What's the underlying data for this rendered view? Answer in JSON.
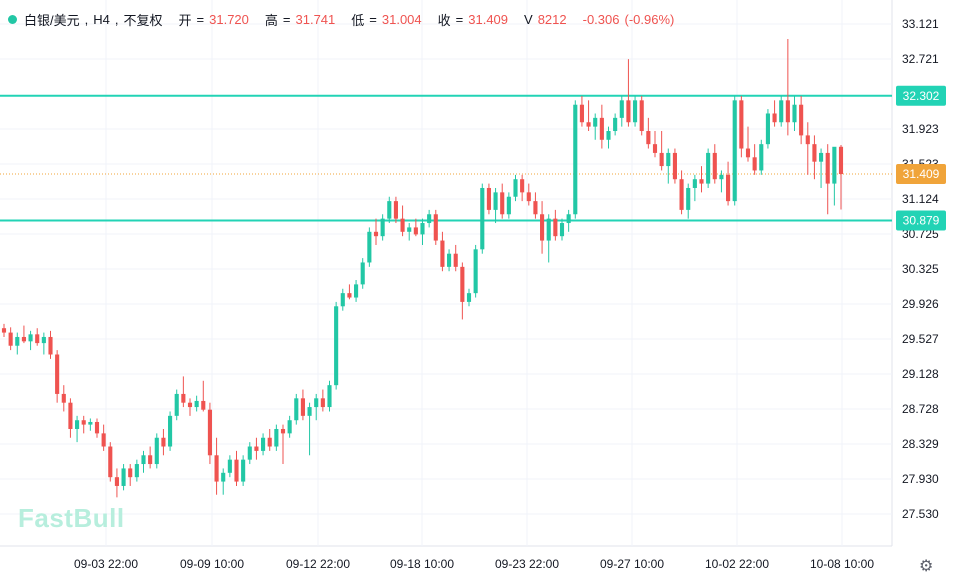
{
  "header": {
    "symbol": "白银/美元",
    "timeframe": "H4",
    "adjust": "不复权",
    "open_label": "开",
    "open": "31.720",
    "high_label": "高",
    "high": "31.741",
    "low_label": "低",
    "low": "31.004",
    "close_label": "收",
    "close": "31.409",
    "volume_label": "V",
    "volume": "8212",
    "change": "-0.306",
    "change_pct": "(-0.96%)"
  },
  "logo": "FastBull",
  "colors": {
    "up": "#22c7a5",
    "down": "#ef5350",
    "level_line": "#22d3b5",
    "last_price": "#f0a43a",
    "grid": "#f0f3fa"
  },
  "icons": {
    "settings": "gear-icon"
  },
  "chart_data": {
    "type": "candlestick",
    "ylim": [
      27.3,
      33.25
    ],
    "y_ticks": [
      "33.121",
      "32.721",
      "32.302",
      "31.923",
      "31.523",
      "31.124",
      "30.725",
      "30.325",
      "29.926",
      "29.527",
      "29.128",
      "28.728",
      "28.329",
      "27.930",
      "27.530"
    ],
    "x_ticks": [
      "09-03 22:00",
      "09-09 10:00",
      "09-12 22:00",
      "09-18 10:00",
      "09-23 22:00",
      "09-27 10:00",
      "10-02 22:00",
      "10-08 10:00"
    ],
    "resistance": 32.302,
    "support": 30.879,
    "last_price": 31.409,
    "resistance_label": "32.302",
    "support_label": "30.879",
    "last_label": "31.409",
    "candles": [
      [
        29.65,
        29.7,
        29.55,
        29.6
      ],
      [
        29.6,
        29.66,
        29.4,
        29.45
      ],
      [
        29.45,
        29.6,
        29.35,
        29.55
      ],
      [
        29.55,
        29.68,
        29.48,
        29.5
      ],
      [
        29.5,
        29.62,
        29.4,
        29.58
      ],
      [
        29.58,
        29.65,
        29.45,
        29.48
      ],
      [
        29.48,
        29.6,
        29.35,
        29.55
      ],
      [
        29.55,
        29.62,
        29.3,
        29.35
      ],
      [
        29.35,
        29.4,
        28.8,
        28.9
      ],
      [
        28.9,
        29.0,
        28.7,
        28.8
      ],
      [
        28.8,
        28.85,
        28.4,
        28.5
      ],
      [
        28.5,
        28.65,
        28.35,
        28.6
      ],
      [
        28.6,
        28.65,
        28.45,
        28.55
      ],
      [
        28.55,
        28.62,
        28.48,
        28.58
      ],
      [
        28.58,
        28.62,
        28.4,
        28.45
      ],
      [
        28.45,
        28.55,
        28.25,
        28.3
      ],
      [
        28.3,
        28.35,
        27.9,
        27.95
      ],
      [
        27.95,
        28.05,
        27.72,
        27.85
      ],
      [
        27.85,
        28.1,
        27.8,
        28.05
      ],
      [
        28.05,
        28.1,
        27.85,
        27.95
      ],
      [
        27.95,
        28.15,
        27.9,
        28.1
      ],
      [
        28.1,
        28.25,
        28.0,
        28.2
      ],
      [
        28.2,
        28.3,
        28.05,
        28.1
      ],
      [
        28.1,
        28.45,
        28.05,
        28.4
      ],
      [
        28.4,
        28.5,
        28.2,
        28.3
      ],
      [
        28.3,
        28.7,
        28.25,
        28.65
      ],
      [
        28.65,
        28.95,
        28.6,
        28.9
      ],
      [
        28.9,
        29.1,
        28.75,
        28.8
      ],
      [
        28.8,
        28.85,
        28.65,
        28.75
      ],
      [
        28.75,
        28.88,
        28.7,
        28.82
      ],
      [
        28.82,
        29.05,
        28.7,
        28.72
      ],
      [
        28.72,
        28.8,
        28.1,
        28.2
      ],
      [
        28.2,
        28.4,
        27.75,
        27.9
      ],
      [
        27.9,
        28.05,
        27.75,
        28.0
      ],
      [
        28.0,
        28.2,
        27.95,
        28.15
      ],
      [
        28.15,
        28.25,
        27.85,
        27.9
      ],
      [
        27.9,
        28.2,
        27.85,
        28.15
      ],
      [
        28.15,
        28.35,
        28.1,
        28.3
      ],
      [
        28.3,
        28.4,
        28.15,
        28.25
      ],
      [
        28.25,
        28.45,
        28.2,
        28.4
      ],
      [
        28.4,
        28.5,
        28.25,
        28.3
      ],
      [
        28.3,
        28.55,
        28.25,
        28.5
      ],
      [
        28.5,
        28.55,
        28.1,
        28.45
      ],
      [
        28.45,
        28.65,
        28.4,
        28.6
      ],
      [
        28.6,
        28.9,
        28.55,
        28.85
      ],
      [
        28.85,
        28.95,
        28.6,
        28.65
      ],
      [
        28.65,
        28.8,
        28.2,
        28.75
      ],
      [
        28.75,
        28.9,
        28.6,
        28.85
      ],
      [
        28.85,
        28.95,
        28.7,
        28.75
      ],
      [
        28.75,
        29.05,
        28.7,
        29.0
      ],
      [
        29.0,
        29.95,
        28.95,
        29.9
      ],
      [
        29.9,
        30.1,
        29.85,
        30.05
      ],
      [
        30.05,
        30.15,
        29.98,
        30.0
      ],
      [
        30.0,
        30.2,
        29.95,
        30.15
      ],
      [
        30.15,
        30.45,
        30.1,
        30.4
      ],
      [
        30.4,
        30.8,
        30.35,
        30.75
      ],
      [
        30.75,
        30.9,
        30.6,
        30.7
      ],
      [
        30.7,
        30.95,
        30.65,
        30.9
      ],
      [
        30.9,
        31.15,
        30.85,
        31.1
      ],
      [
        31.1,
        31.15,
        30.85,
        30.9
      ],
      [
        30.9,
        31.05,
        30.7,
        30.75
      ],
      [
        30.75,
        30.85,
        30.65,
        30.8
      ],
      [
        30.8,
        30.9,
        30.7,
        30.72
      ],
      [
        30.72,
        30.9,
        30.6,
        30.85
      ],
      [
        30.85,
        31.0,
        30.8,
        30.95
      ],
      [
        30.95,
        31.0,
        30.6,
        30.65
      ],
      [
        30.65,
        30.75,
        30.3,
        30.35
      ],
      [
        30.35,
        30.55,
        30.3,
        30.5
      ],
      [
        30.5,
        30.6,
        30.3,
        30.35
      ],
      [
        30.35,
        30.4,
        29.75,
        29.95
      ],
      [
        29.95,
        30.1,
        29.9,
        30.05
      ],
      [
        30.05,
        30.6,
        30.0,
        30.55
      ],
      [
        30.55,
        31.3,
        30.5,
        31.25
      ],
      [
        31.25,
        31.3,
        30.95,
        31.0
      ],
      [
        31.0,
        31.25,
        30.85,
        31.2
      ],
      [
        31.2,
        31.3,
        30.9,
        30.95
      ],
      [
        30.95,
        31.2,
        30.9,
        31.15
      ],
      [
        31.15,
        31.4,
        31.1,
        31.35
      ],
      [
        31.35,
        31.4,
        31.1,
        31.2
      ],
      [
        31.2,
        31.3,
        31.05,
        31.1
      ],
      [
        31.1,
        31.2,
        30.9,
        30.95
      ],
      [
        30.95,
        31.1,
        30.5,
        30.65
      ],
      [
        30.65,
        30.95,
        30.4,
        30.9
      ],
      [
        30.9,
        31.0,
        30.65,
        30.7
      ],
      [
        30.7,
        30.9,
        30.65,
        30.85
      ],
      [
        30.85,
        31.0,
        30.75,
        30.95
      ],
      [
        30.95,
        32.25,
        30.9,
        32.2
      ],
      [
        32.2,
        32.3,
        31.95,
        32.0
      ],
      [
        32.0,
        32.25,
        31.9,
        31.95
      ],
      [
        31.95,
        32.1,
        31.8,
        32.05
      ],
      [
        32.05,
        32.2,
        31.7,
        31.8
      ],
      [
        31.8,
        31.95,
        31.7,
        31.9
      ],
      [
        31.9,
        32.1,
        31.85,
        32.05
      ],
      [
        32.05,
        32.3,
        31.95,
        32.25
      ],
      [
        32.25,
        32.72,
        31.95,
        32.0
      ],
      [
        32.0,
        32.3,
        31.95,
        32.25
      ],
      [
        32.25,
        32.3,
        31.85,
        31.9
      ],
      [
        31.9,
        32.05,
        31.7,
        31.75
      ],
      [
        31.75,
        31.9,
        31.6,
        31.65
      ],
      [
        31.65,
        31.9,
        31.45,
        31.5
      ],
      [
        31.5,
        31.7,
        31.3,
        31.65
      ],
      [
        31.65,
        31.7,
        31.3,
        31.35
      ],
      [
        31.35,
        31.45,
        30.95,
        31.0
      ],
      [
        31.0,
        31.3,
        30.9,
        31.25
      ],
      [
        31.25,
        31.4,
        31.1,
        31.35
      ],
      [
        31.35,
        31.5,
        31.2,
        31.3
      ],
      [
        31.3,
        31.7,
        31.25,
        31.65
      ],
      [
        31.65,
        31.75,
        31.3,
        31.35
      ],
      [
        31.35,
        31.45,
        31.2,
        31.4
      ],
      [
        31.4,
        31.55,
        31.05,
        31.1
      ],
      [
        31.1,
        32.3,
        31.05,
        32.25
      ],
      [
        32.25,
        32.3,
        31.6,
        31.7
      ],
      [
        31.7,
        31.95,
        31.55,
        31.6
      ],
      [
        31.6,
        31.75,
        31.4,
        31.45
      ],
      [
        31.45,
        31.8,
        31.4,
        31.75
      ],
      [
        31.75,
        32.15,
        31.7,
        32.1
      ],
      [
        32.1,
        32.25,
        31.95,
        32.0
      ],
      [
        32.0,
        32.3,
        31.95,
        32.25
      ],
      [
        32.25,
        32.95,
        31.85,
        32.0
      ],
      [
        32.0,
        32.3,
        31.9,
        32.2
      ],
      [
        32.2,
        32.3,
        31.75,
        31.85
      ],
      [
        31.85,
        32.0,
        31.4,
        31.75
      ],
      [
        31.75,
        31.85,
        31.35,
        31.55
      ],
      [
        31.55,
        31.7,
        31.25,
        31.65
      ],
      [
        31.65,
        31.75,
        30.95,
        31.3
      ],
      [
        31.3,
        31.7,
        31.05,
        31.72
      ],
      [
        31.72,
        31.741,
        31.004,
        31.409
      ]
    ]
  }
}
